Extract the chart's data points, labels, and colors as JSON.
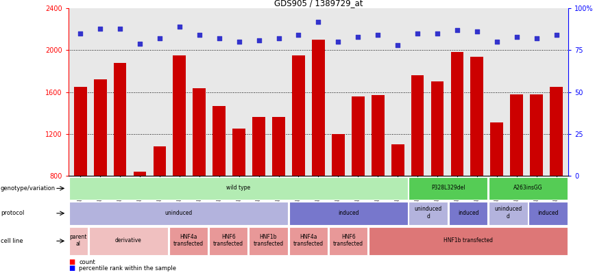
{
  "title": "GDS905 / 1389729_at",
  "samples": [
    "GSM27203",
    "GSM27204",
    "GSM27205",
    "GSM27206",
    "GSM27207",
    "GSM27150",
    "GSM27152",
    "GSM27156",
    "GSM27159",
    "GSM27063",
    "GSM27148",
    "GSM27151",
    "GSM27153",
    "GSM27157",
    "GSM27160",
    "GSM27147",
    "GSM27149",
    "GSM27161",
    "GSM27165",
    "GSM27163",
    "GSM27167",
    "GSM27169",
    "GSM27171",
    "GSM27170",
    "GSM27172"
  ],
  "counts": [
    1650,
    1720,
    1880,
    840,
    1080,
    1950,
    1640,
    1470,
    1250,
    1360,
    1360,
    1950,
    2100,
    1200,
    1560,
    1570,
    1100,
    1760,
    1700,
    1980,
    1940,
    1310,
    1580,
    1580,
    1650
  ],
  "percentiles": [
    85,
    88,
    88,
    79,
    82,
    89,
    84,
    82,
    80,
    81,
    82,
    84,
    92,
    80,
    83,
    84,
    78,
    85,
    85,
    87,
    86,
    80,
    83,
    82,
    84
  ],
  "ylim_left": [
    800,
    2400
  ],
  "ylim_right": [
    0,
    100
  ],
  "yticks_left": [
    800,
    1200,
    1600,
    2000,
    2400
  ],
  "yticks_right": [
    0,
    25,
    50,
    75,
    100
  ],
  "bar_color": "#cc0000",
  "dot_color": "#3333cc",
  "bg_color": "#e8e8e8",
  "genotype_row": {
    "label": "genotype/variation",
    "segments": [
      {
        "text": "wild type",
        "start": 0,
        "end": 17,
        "color": "#b3ecb3"
      },
      {
        "text": "P328L329del",
        "start": 17,
        "end": 21,
        "color": "#55cc55"
      },
      {
        "text": "A263insGG",
        "start": 21,
        "end": 25,
        "color": "#55cc55"
      }
    ]
  },
  "protocol_row": {
    "label": "protocol",
    "segments": [
      {
        "text": "uninduced",
        "start": 0,
        "end": 11,
        "color": "#b3b3dd"
      },
      {
        "text": "induced",
        "start": 11,
        "end": 17,
        "color": "#7777cc"
      },
      {
        "text": "uninduced\nd",
        "start": 17,
        "end": 19,
        "color": "#b3b3dd"
      },
      {
        "text": "induced",
        "start": 19,
        "end": 21,
        "color": "#7777cc"
      },
      {
        "text": "uninduced\nd",
        "start": 21,
        "end": 23,
        "color": "#b3b3dd"
      },
      {
        "text": "induced",
        "start": 23,
        "end": 25,
        "color": "#7777cc"
      }
    ]
  },
  "cellline_row": {
    "label": "cell line",
    "segments": [
      {
        "text": "parent\nal",
        "start": 0,
        "end": 1,
        "color": "#f0c0c0"
      },
      {
        "text": "derivative",
        "start": 1,
        "end": 5,
        "color": "#f0c0c0"
      },
      {
        "text": "HNF4a\ntransfected",
        "start": 5,
        "end": 7,
        "color": "#e89898"
      },
      {
        "text": "HNF6\ntransfected",
        "start": 7,
        "end": 9,
        "color": "#e89898"
      },
      {
        "text": "HNF1b\ntransfected",
        "start": 9,
        "end": 11,
        "color": "#e89898"
      },
      {
        "text": "HNF4a\ntransfected",
        "start": 11,
        "end": 13,
        "color": "#e89898"
      },
      {
        "text": "HNF6\ntransfected",
        "start": 13,
        "end": 15,
        "color": "#e89898"
      },
      {
        "text": "HNF1b transfected",
        "start": 15,
        "end": 25,
        "color": "#dd7777"
      }
    ]
  }
}
